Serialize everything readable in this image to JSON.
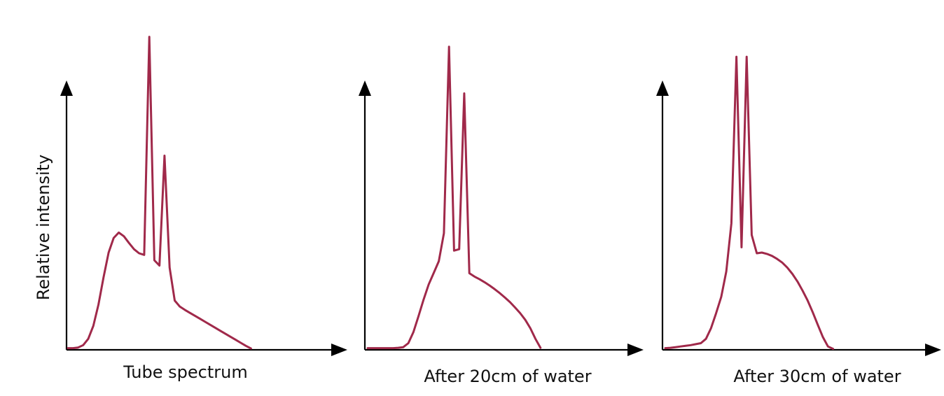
{
  "chart_data": [
    {
      "type": "line",
      "caption": "Tube spectrum",
      "ylabel": "Relative intensity",
      "x": [
        0,
        2,
        4,
        6,
        8,
        10,
        12,
        14,
        16,
        18,
        20,
        22,
        24,
        26,
        28,
        30,
        32,
        34,
        36,
        38,
        40,
        42,
        44,
        46,
        48,
        50,
        52,
        54,
        56,
        58,
        60,
        62,
        64,
        66,
        68,
        70,
        72,
        74,
        76,
        78,
        80,
        82,
        84,
        86,
        88,
        90,
        92,
        94,
        96,
        98,
        100
      ],
      "xlim": [
        0,
        100
      ],
      "ylim": [
        0,
        100
      ],
      "series": [
        {
          "values": [
            0.5,
            0.5,
            0.7,
            1.4,
            3.3,
            7.2,
            13.6,
            21.7,
            29.2,
            33.6,
            35.2,
            34.1,
            32.1,
            30.2,
            29.0,
            28.5,
            94.0,
            26.9,
            25.3,
            58.3,
            24.7,
            14.8,
            13.0,
            12.0,
            11.1,
            10.2,
            9.3,
            8.4,
            7.5,
            6.6,
            5.7,
            4.8,
            3.9,
            3.0,
            2.1,
            1.2,
            0.4,
            null,
            null,
            null,
            null,
            null,
            null,
            null,
            null,
            null,
            null,
            null,
            null,
            null,
            null
          ],
          "color": "#a0294a"
        }
      ]
    },
    {
      "type": "line",
      "caption": "After 20cm of water",
      "x": [
        0,
        2,
        4,
        6,
        8,
        10,
        12,
        14,
        16,
        18,
        20,
        22,
        24,
        26,
        28,
        30,
        32,
        34,
        36,
        38,
        40,
        42,
        44,
        46,
        48,
        50,
        52,
        54,
        56,
        58,
        60,
        62,
        64,
        66,
        68,
        70,
        72,
        74,
        76,
        78,
        80,
        82,
        84,
        86,
        88,
        90,
        92,
        94,
        96,
        98,
        100
      ],
      "xlim": [
        0,
        100
      ],
      "ylim": [
        0,
        100
      ],
      "series": [
        {
          "values": [
            0.5,
            0.5,
            0.5,
            0.5,
            0.5,
            0.5,
            0.6,
            0.8,
            2.0,
            5.3,
            10.1,
            15.1,
            19.6,
            23.1,
            26.6,
            35.0,
            91.0,
            29.8,
            30.2,
            77.0,
            23.0,
            22.0,
            21.2,
            20.3,
            19.3,
            18.2,
            17.0,
            15.7,
            14.3,
            12.7,
            11.0,
            9.0,
            6.5,
            3.3,
            0.6,
            null,
            null,
            null,
            null,
            null,
            null,
            null,
            null,
            null,
            null,
            null,
            null,
            null,
            null,
            null,
            null
          ],
          "color": "#a0294a"
        }
      ]
    },
    {
      "type": "line",
      "caption": "After 30cm of water",
      "x": [
        0,
        2,
        4,
        6,
        8,
        10,
        12,
        14,
        16,
        18,
        20,
        22,
        24,
        26,
        28,
        30,
        32,
        34,
        36,
        38,
        40,
        42,
        44,
        46,
        48,
        50,
        52,
        54,
        56,
        58,
        60,
        62,
        64,
        66,
        68,
        70,
        72,
        74,
        76,
        78,
        80,
        82,
        84,
        86,
        88,
        90,
        92,
        94,
        96,
        98,
        100
      ],
      "xlim": [
        0,
        100
      ],
      "ylim": [
        0,
        100
      ],
      "series": [
        {
          "values": [
            0.5,
            0.6,
            0.8,
            1.0,
            1.2,
            1.4,
            1.7,
            2.0,
            3.3,
            6.5,
            11.0,
            15.9,
            23.5,
            38.0,
            88.0,
            30.8,
            88.0,
            34.5,
            29.0,
            29.2,
            28.8,
            28.2,
            27.3,
            26.2,
            24.7,
            22.8,
            20.5,
            17.8,
            14.8,
            11.3,
            7.5,
            3.8,
            1.0,
            0.3,
            null,
            null,
            null,
            null,
            null,
            null,
            null,
            null,
            null,
            null,
            null,
            null,
            null,
            null,
            null,
            null,
            null
          ],
          "color": "#a0294a"
        }
      ]
    }
  ]
}
